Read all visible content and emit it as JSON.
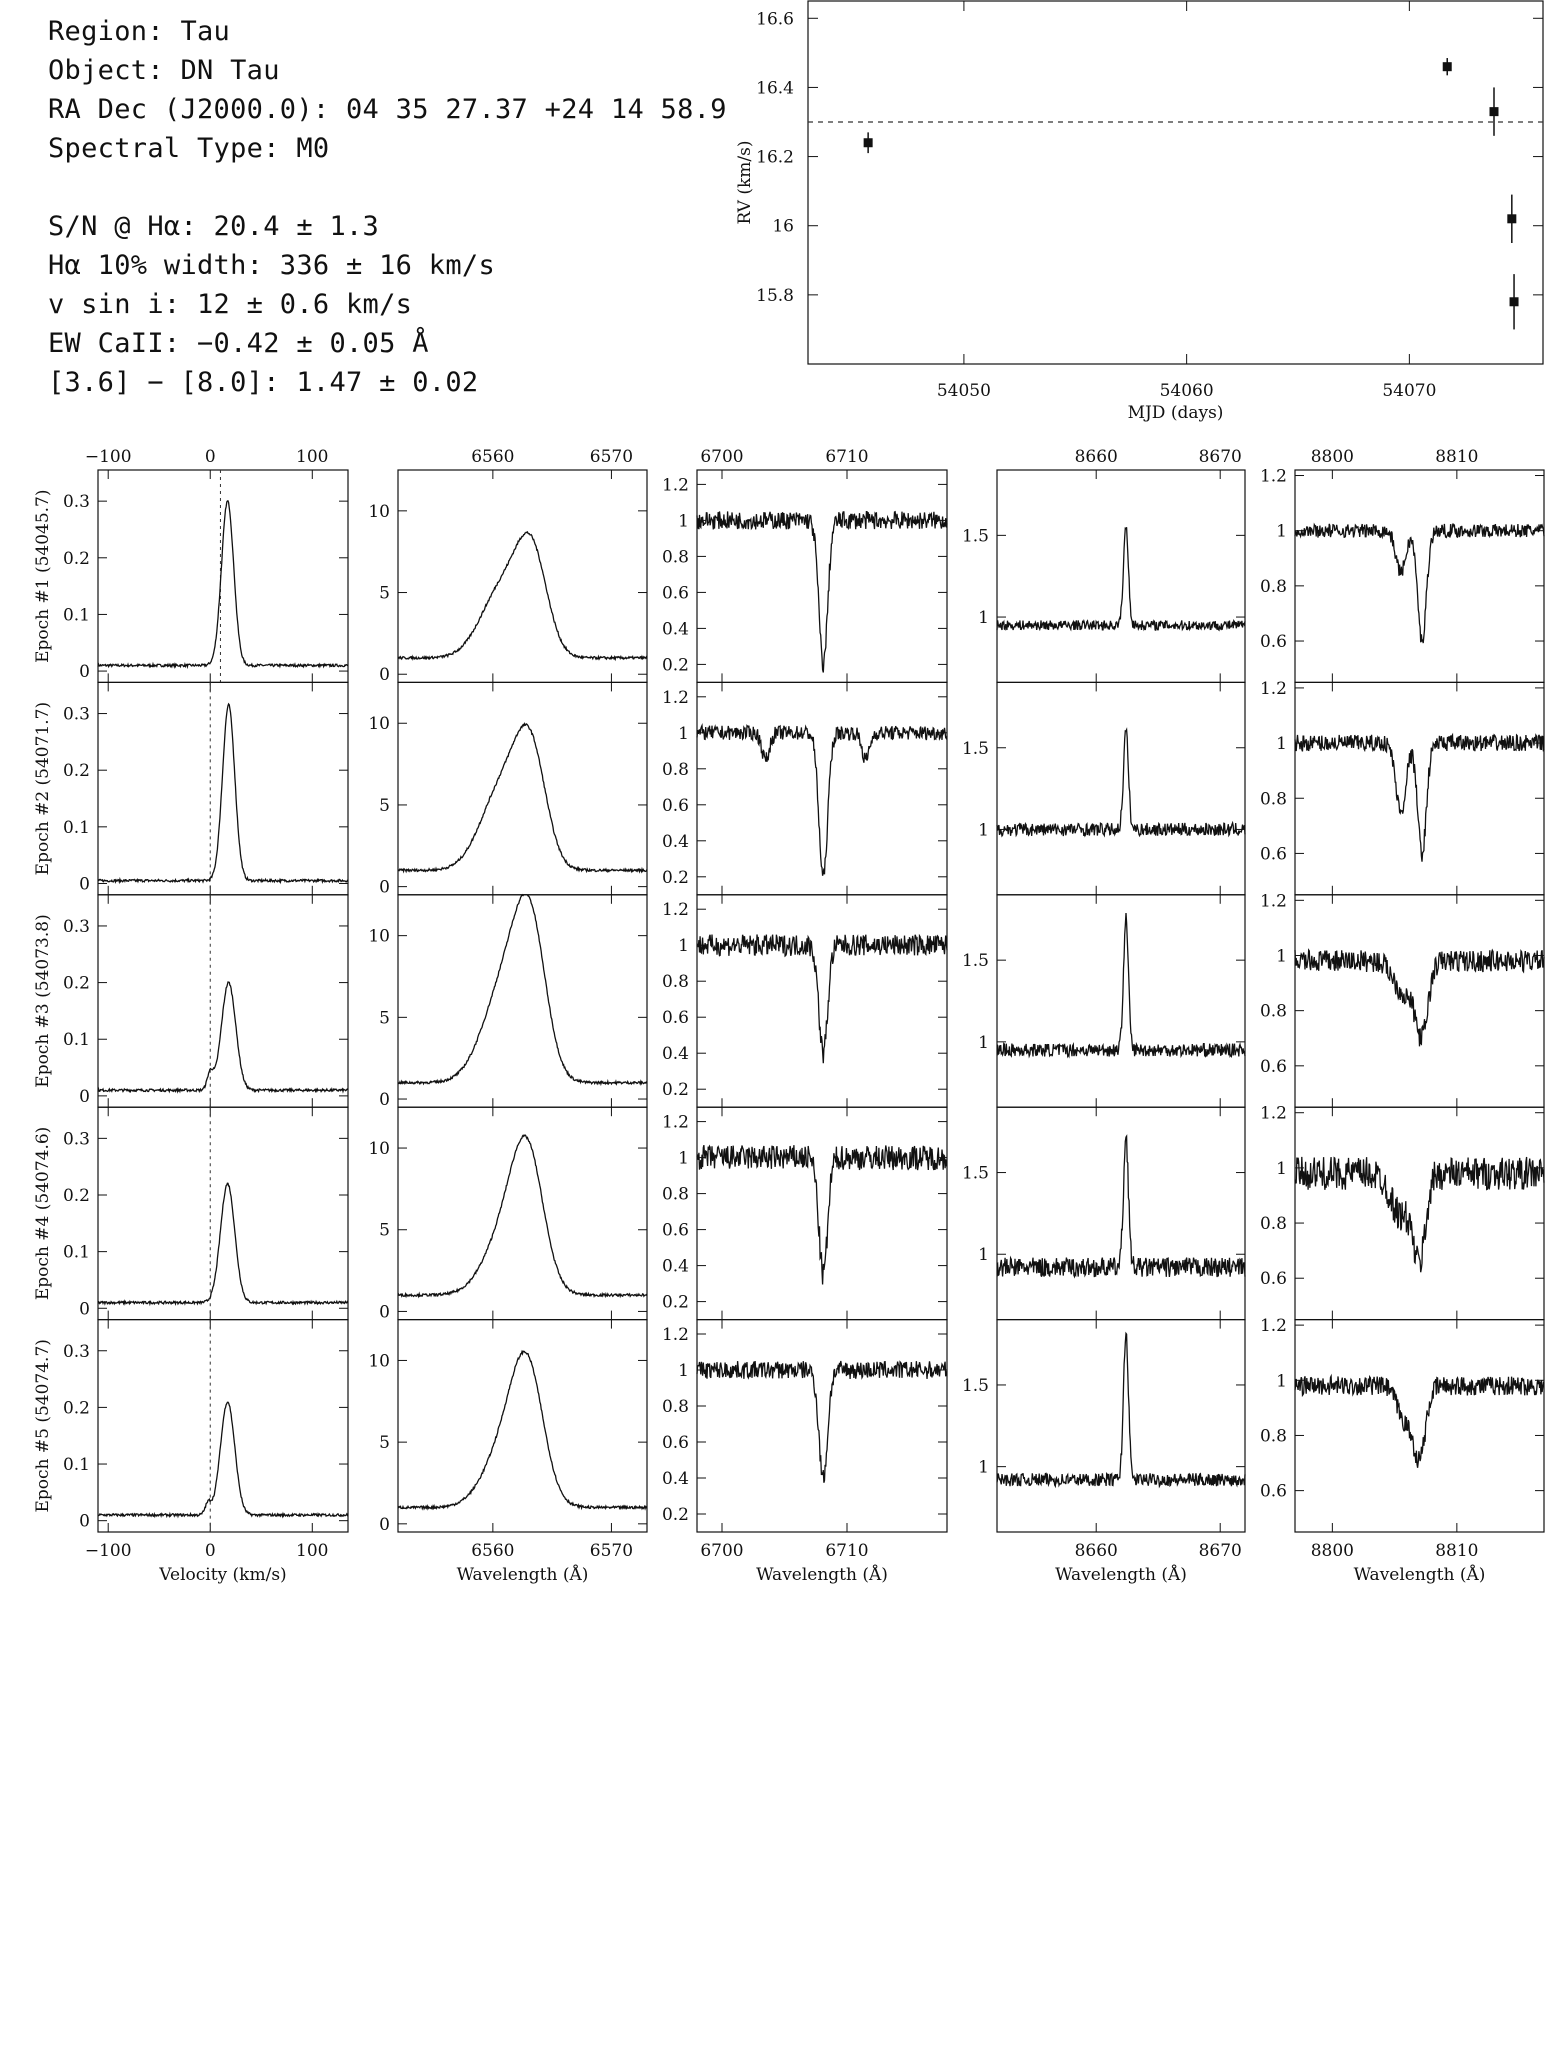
{
  "info": {
    "lines": [
      "Region: Tau",
      "Object: DN Tau",
      "RA Dec (J2000.0): 04 35 27.37 +24 14 58.9",
      "Spectral Type: M0"
    ],
    "lines2": [
      "S/N @ Hα: 20.4 ± 1.3",
      "Hα 10% width: 336 ± 16 km/s",
      "v sin i: 12 ± 0.6 km/s",
      "EW CaII: −0.42 ± 0.05 Å",
      "[3.6] − [8.0]: 1.47 ± 0.02"
    ]
  },
  "chart_data": [
    {
      "type": "scatter",
      "name": "rv",
      "xlabel": "MJD (days)",
      "ylabel": "RV (km/s)",
      "xlim": [
        54043,
        54076
      ],
      "ylim": [
        15.6,
        16.65
      ],
      "xticks": [
        54050,
        54060,
        54070
      ],
      "yticks": [
        15.8,
        16,
        16.2,
        16.4,
        16.6
      ],
      "reference_y": 16.3,
      "points": [
        {
          "x": 54045.7,
          "y": 16.24,
          "err": 0.03
        },
        {
          "x": 54071.7,
          "y": 16.46,
          "err": 0.025
        },
        {
          "x": 54073.8,
          "y": 16.33,
          "err": 0.07
        },
        {
          "x": 54074.6,
          "y": 16.02,
          "err": 0.07
        },
        {
          "x": 54074.7,
          "y": 15.78,
          "err": 0.08
        }
      ]
    },
    {
      "type": "line",
      "name": "spectra_grid",
      "row_labels": [
        "Epoch #1 (54045.7)",
        "Epoch #2 (54071.7)",
        "Epoch #3 (54073.8)",
        "Epoch #4 (54074.6)",
        "Epoch #5 (54074.7)"
      ],
      "columns": [
        {
          "name": "halpha_velocity",
          "xlabel": "Velocity (km/s)",
          "xlim": [
            -110,
            135
          ],
          "ylim": [
            -0.02,
            0.355
          ],
          "xticks": [
            -100,
            0,
            100
          ],
          "yticks": [
            0,
            0.1,
            0.2,
            0.3
          ],
          "ref_lines": [
            [
              10
            ],
            [
              0
            ],
            [
              0
            ],
            [
              0
            ],
            [
              0
            ]
          ],
          "series": [
            {
              "peaks": [
                {
                  "c": 17,
                  "w": 6,
                  "a": 0.29
                }
              ],
              "base": 0.01
            },
            {
              "peaks": [
                {
                  "c": 18,
                  "w": 6,
                  "a": 0.31
                }
              ],
              "base": 0.005
            },
            {
              "peaks": [
                {
                  "c": 18,
                  "w": 7,
                  "a": 0.19
                },
                {
                  "c": 0,
                  "w": 3,
                  "a": 0.03
                }
              ],
              "base": 0.01
            },
            {
              "peaks": [
                {
                  "c": 17,
                  "w": 7,
                  "a": 0.21
                }
              ],
              "base": 0.01
            },
            {
              "peaks": [
                {
                  "c": 17,
                  "w": 7,
                  "a": 0.2
                },
                {
                  "c": -2,
                  "w": 3,
                  "a": 0.02
                }
              ],
              "base": 0.01
            }
          ]
        },
        {
          "name": "halpha_profile",
          "xlabel": "Wavelength (Å)",
          "xlim": [
            6552,
            6573
          ],
          "ylim": [
            -0.5,
            12.5
          ],
          "xticks": [
            6560,
            6570
          ],
          "yticks": [
            0,
            5,
            10
          ],
          "series": [
            {
              "peaks": [
                {
                  "c": 6560.8,
                  "w": 1.8,
                  "a": 4.2
                },
                {
                  "c": 6563.3,
                  "w": 1.3,
                  "a": 5.8
                }
              ],
              "base": 1.0
            },
            {
              "peaks": [
                {
                  "c": 6560.8,
                  "w": 1.8,
                  "a": 5.0
                },
                {
                  "c": 6563.2,
                  "w": 1.3,
                  "a": 6.5
                }
              ],
              "base": 1.0
            },
            {
              "peaks": [
                {
                  "c": 6561.2,
                  "w": 1.9,
                  "a": 6.3
                },
                {
                  "c": 6563.2,
                  "w": 1.3,
                  "a": 7.5
                }
              ],
              "base": 1.0
            },
            {
              "peaks": [
                {
                  "c": 6561.5,
                  "w": 1.9,
                  "a": 4.5
                },
                {
                  "c": 6563.0,
                  "w": 1.3,
                  "a": 6.2
                }
              ],
              "base": 1.0
            },
            {
              "peaks": [
                {
                  "c": 6561.5,
                  "w": 1.9,
                  "a": 4.5
                },
                {
                  "c": 6563.0,
                  "w": 1.3,
                  "a": 6.0
                }
              ],
              "base": 1.0
            }
          ]
        },
        {
          "name": "li_6708",
          "xlabel": "Wavelength (Å)",
          "xlim": [
            6698,
            6718
          ],
          "ylim": [
            0.1,
            1.28
          ],
          "xticks": [
            6700,
            6710
          ],
          "yticks": [
            0.2,
            0.4,
            0.6,
            0.8,
            1,
            1.2
          ],
          "series": [
            {
              "dips": [
                {
                  "c": 6708.1,
                  "w": 0.35,
                  "a": 0.8
                }
              ],
              "base": 1.0,
              "noise": 0.05
            },
            {
              "dips": [
                {
                  "c": 6708.1,
                  "w": 0.35,
                  "a": 0.8
                },
                {
                  "c": 6703.5,
                  "w": 0.3,
                  "a": 0.15
                },
                {
                  "c": 6711.5,
                  "w": 0.3,
                  "a": 0.15
                }
              ],
              "base": 1.0,
              "noise": 0.04
            },
            {
              "dips": [
                {
                  "c": 6708.1,
                  "w": 0.35,
                  "a": 0.6
                }
              ],
              "base": 1.0,
              "noise": 0.06
            },
            {
              "dips": [
                {
                  "c": 6708.1,
                  "w": 0.35,
                  "a": 0.65
                }
              ],
              "base": 1.0,
              "noise": 0.07
            },
            {
              "dips": [
                {
                  "c": 6708.1,
                  "w": 0.35,
                  "a": 0.6
                }
              ],
              "base": 1.0,
              "noise": 0.05
            }
          ]
        },
        {
          "name": "caii_8662",
          "xlabel": "Wavelength (Å)",
          "xlim": [
            8652,
            8672
          ],
          "ylim": [
            0.6,
            1.9
          ],
          "xticks": [
            8660,
            8670
          ],
          "yticks": [
            1,
            1.5
          ],
          "series": [
            {
              "peaks": [
                {
                  "c": 8662.4,
                  "w": 0.2,
                  "a": 0.6
                }
              ],
              "base": 0.95,
              "noise": 0.03
            },
            {
              "peaks": [
                {
                  "c": 8662.4,
                  "w": 0.2,
                  "a": 0.6
                }
              ],
              "base": 1.0,
              "noise": 0.04
            },
            {
              "peaks": [
                {
                  "c": 8662.4,
                  "w": 0.2,
                  "a": 0.8
                }
              ],
              "base": 0.95,
              "noise": 0.04
            },
            {
              "peaks": [
                {
                  "c": 8662.4,
                  "w": 0.2,
                  "a": 0.8
                }
              ],
              "base": 0.92,
              "noise": 0.06
            },
            {
              "peaks": [
                {
                  "c": 8662.4,
                  "w": 0.2,
                  "a": 0.9
                }
              ],
              "base": 0.92,
              "noise": 0.04
            }
          ]
        },
        {
          "name": "caii_8806",
          "xlabel": "Wavelength (Å)",
          "xlim": [
            8797,
            8817
          ],
          "ylim": [
            0.45,
            1.22
          ],
          "xticks": [
            8800,
            8810
          ],
          "yticks": [
            0.6,
            0.8,
            1,
            1.2
          ],
          "series": [
            {
              "dips": [
                {
                  "c": 8807.2,
                  "w": 0.35,
                  "a": 0.4
                },
                {
                  "c": 8805.5,
                  "w": 0.4,
                  "a": 0.15
                }
              ],
              "base": 1.0,
              "noise": 0.025
            },
            {
              "dips": [
                {
                  "c": 8807.2,
                  "w": 0.35,
                  "a": 0.4
                },
                {
                  "c": 8805.5,
                  "w": 0.4,
                  "a": 0.25
                }
              ],
              "base": 1.0,
              "noise": 0.03
            },
            {
              "dips": [
                {
                  "c": 8807.2,
                  "w": 0.5,
                  "a": 0.25
                },
                {
                  "c": 8805.8,
                  "w": 0.8,
                  "a": 0.12
                }
              ],
              "base": 0.98,
              "noise": 0.04
            },
            {
              "dips": [
                {
                  "c": 8807.0,
                  "w": 0.5,
                  "a": 0.3
                },
                {
                  "c": 8805.5,
                  "w": 0.8,
                  "a": 0.15
                }
              ],
              "base": 0.98,
              "noise": 0.06
            },
            {
              "dips": [
                {
                  "c": 8807.0,
                  "w": 0.5,
                  "a": 0.25
                },
                {
                  "c": 8805.8,
                  "w": 0.6,
                  "a": 0.12
                }
              ],
              "base": 0.98,
              "noise": 0.035
            }
          ]
        }
      ]
    }
  ]
}
